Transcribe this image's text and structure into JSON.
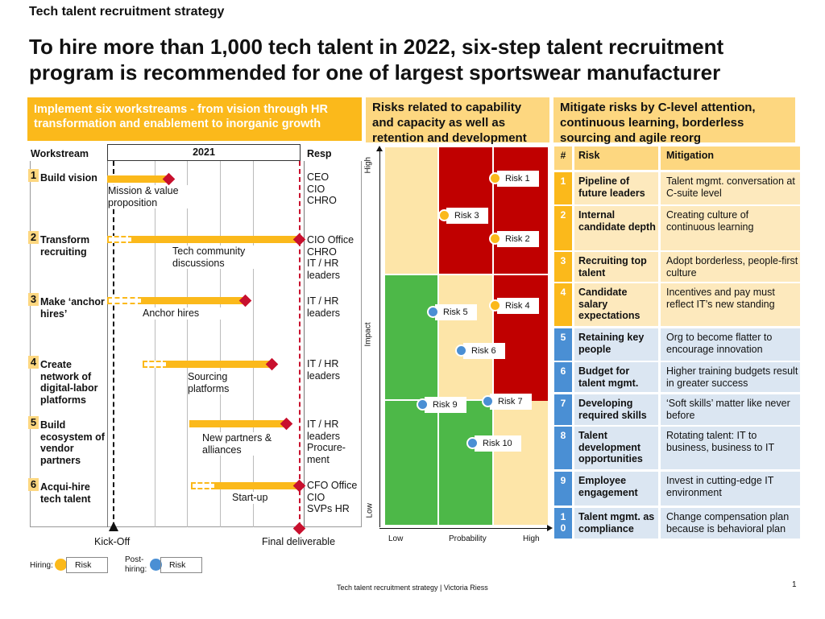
{
  "kicker": "Tech talent recruitment strategy",
  "title": "To hire more than 1,000 tech talent in 2022, six-step talent recruitment program is recommended for one of largest sportswear manufacturer",
  "left": {
    "header": "Implement six workstreams - from vision through HR transformation and enablement to inorganic growth",
    "col_workstream": "Workstream",
    "col_year": "2021",
    "col_resp": "Resp",
    "rows": [
      {
        "num": "1",
        "name": "Build vision",
        "activity": "Mission & value proposition",
        "resp": "CEO\nCIO\nCHRO"
      },
      {
        "num": "2",
        "name": "Transform recruiting",
        "activity": "Tech community discussions",
        "resp": "CIO Office\nCHRO\nIT / HR leaders"
      },
      {
        "num": "3",
        "name": "Make ‘anchor hires’",
        "activity": "Anchor hires",
        "resp": "IT / HR leaders"
      },
      {
        "num": "4",
        "name": "Create network of digital-labor platforms",
        "activity": "Sourcing platforms",
        "resp": "IT / HR leaders"
      },
      {
        "num": "5",
        "name": "Build ecosystem of vendor partners",
        "activity": "New partners & alliances",
        "resp": "IT / HR leaders Procure-ment"
      },
      {
        "num": "6",
        "name": "Acqui-hire tech talent",
        "activity": "Start-up",
        "resp": "CFO Office\nCIO\nSVPs HR"
      }
    ],
    "kickoff": "Kick-Off",
    "final": "Final deliverable",
    "legend": {
      "hiring": "Hiring:",
      "post": "Post-hiring:",
      "risk": "Risk"
    }
  },
  "middle": {
    "header": "Risks related to capability and capacity as well as retention and development",
    "y_axis": "Impact",
    "y_high": "High",
    "y_low": "Low",
    "x_axis": "Probability",
    "x_low": "Low",
    "x_high": "High",
    "risks": [
      {
        "label": "Risk 1",
        "type": "hiring"
      },
      {
        "label": "Risk 2",
        "type": "hiring"
      },
      {
        "label": "Risk 3",
        "type": "hiring"
      },
      {
        "label": "Risk 4",
        "type": "hiring"
      },
      {
        "label": "Risk 5",
        "type": "post"
      },
      {
        "label": "Risk 6",
        "type": "post"
      },
      {
        "label": "Risk 7",
        "type": "post"
      },
      {
        "label": "Risk 9",
        "type": "post"
      },
      {
        "label": "Risk 10",
        "type": "post"
      }
    ]
  },
  "right": {
    "header": "Mitigate risks by C-level attention, continuous learning, borderless sourcing and agile reorg",
    "col_num": "#",
    "col_risk": "Risk",
    "col_mit": "Mitigation",
    "rows": [
      {
        "num": "1",
        "risk": "Pipeline of future leaders",
        "mit": "Talent mgmt. conversation at C-suite level"
      },
      {
        "num": "2",
        "risk": "Internal candidate depth",
        "mit": "Creating culture of continuous learning"
      },
      {
        "num": "3",
        "risk": "Recruiting top talent",
        "mit": "Adopt borderless, people-first culture"
      },
      {
        "num": "4",
        "risk": "Candidate salary expectations",
        "mit": "Incentives and pay must reflect IT’s new standing"
      },
      {
        "num": "5",
        "risk": "Retaining key people",
        "mit": "Org to become flatter to encourage innovation"
      },
      {
        "num": "6",
        "risk": "Budget for talent mgmt.",
        "mit": "Higher training budgets result in greater success"
      },
      {
        "num": "7",
        "risk": "Developing required skills",
        "mit": "‘Soft skills’ matter like never before"
      },
      {
        "num": "8",
        "risk": "Talent development opportunities",
        "mit": "Rotating talent: IT to business, business to IT"
      },
      {
        "num": "9",
        "risk": "Employee engagement",
        "mit": "Invest in cutting-edge IT environment"
      },
      {
        "num": "10",
        "risk": "Talent mgmt. as compliance",
        "mit": "Change compensation plan because is behavioral plan"
      }
    ]
  },
  "footer": {
    "text": "Tech talent recruitment strategy | Victoria Riess",
    "page": "1"
  },
  "colors": {
    "orange": "#fbb91b",
    "red": "#c00000",
    "green": "#4db848",
    "light": "#fde5a8",
    "blue": "#4a8fd4",
    "diamond": "#c8102e"
  }
}
